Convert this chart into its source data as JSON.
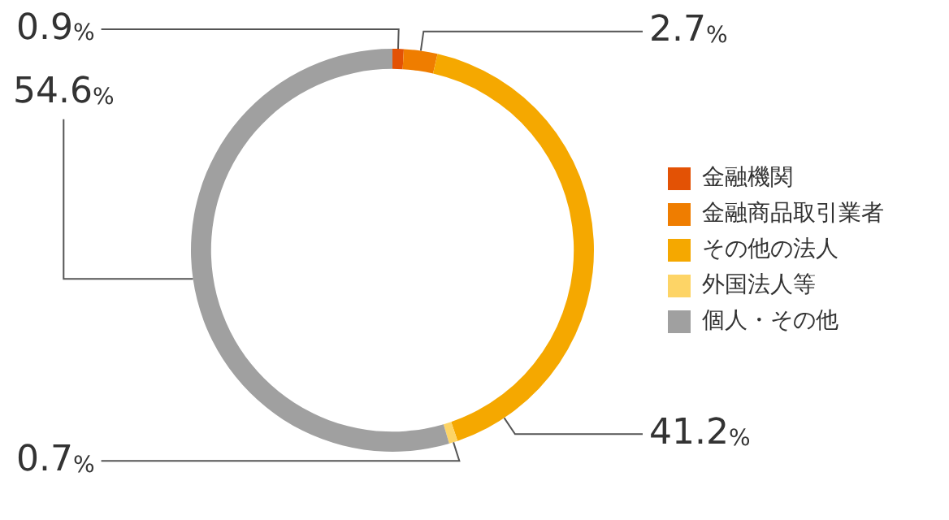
{
  "chart_data": {
    "type": "donut",
    "categories": [
      "金融機関",
      "金融商品取引業者",
      "その他の法人",
      "外国法人等",
      "個人・その他"
    ],
    "values": [
      0.9,
      2.7,
      41.2,
      0.7,
      54.6
    ],
    "colors": [
      "#e35205",
      "#ef7d00",
      "#f5a800",
      "#fdd466",
      "#a0a0a0"
    ],
    "value_labels": [
      "0.9%",
      "2.7%",
      "41.2%",
      "0.7%",
      "54.6%"
    ],
    "legend": "right"
  }
}
